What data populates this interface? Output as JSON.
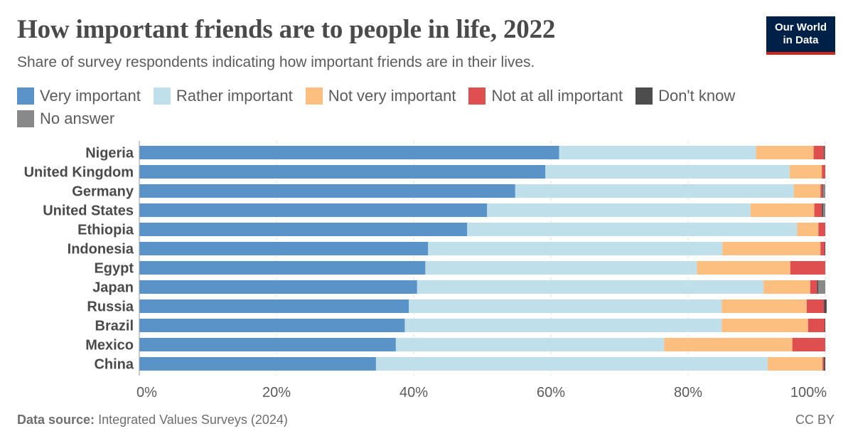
{
  "header": {
    "title": "How important friends are to people in life, 2022",
    "subtitle": "Share of survey respondents indicating how important friends are in their lives."
  },
  "logo": {
    "line1": "Our World",
    "line2": "in Data"
  },
  "footer": {
    "source_label": "Data source:",
    "source_text": "Integrated Values Surveys (2024)",
    "license": "CC BY"
  },
  "chart_data": {
    "type": "bar",
    "orientation": "horizontal",
    "stacked": true,
    "title": "How important friends are to people in life, 2022",
    "subtitle": "Share of survey respondents indicating how important friends are in their lives.",
    "xlim": [
      0,
      100
    ],
    "x_ticks": [
      "0%",
      "20%",
      "40%",
      "60%",
      "80%",
      "100%"
    ],
    "x_tick_values": [
      0,
      20,
      40,
      60,
      80,
      100
    ],
    "grid": "vertical dashed",
    "legend_position": "top-left",
    "categories": [
      "Nigeria",
      "United Kingdom",
      "Germany",
      "United States",
      "Ethiopia",
      "Indonesia",
      "Egypt",
      "Japan",
      "Russia",
      "Brazil",
      "Mexico",
      "China"
    ],
    "series": [
      {
        "name": "Very important",
        "color": "#5a93c8",
        "values": [
          61.2,
          59.2,
          54.8,
          50.7,
          47.8,
          42.1,
          41.7,
          40.5,
          39.3,
          38.7,
          37.4,
          34.5
        ]
      },
      {
        "name": "Rather important",
        "color": "#bfe0eb",
        "values": [
          28.7,
          35.6,
          40.6,
          38.4,
          48.1,
          42.9,
          39.6,
          50.5,
          45.6,
          46.2,
          39.1,
          57.1
        ]
      },
      {
        "name": "Not very important",
        "color": "#fcbf80",
        "values": [
          8.4,
          4.7,
          3.9,
          9.3,
          3.1,
          14.3,
          13.6,
          6.8,
          12.4,
          12.6,
          18.7,
          8.0
        ]
      },
      {
        "name": "Not at all important",
        "color": "#e04f4f",
        "values": [
          1.5,
          0.5,
          0.3,
          1.1,
          1.0,
          0.6,
          5.1,
          1.0,
          2.5,
          2.4,
          4.8,
          0.2
        ]
      },
      {
        "name": "Don't know",
        "color": "#4d4d4d",
        "values": [
          0.1,
          0.0,
          0.1,
          0.2,
          0.0,
          0.1,
          0.0,
          0.2,
          0.4,
          0.1,
          0.0,
          0.2
        ]
      },
      {
        "name": "No answer",
        "color": "#898989",
        "values": [
          0.1,
          0.0,
          0.3,
          0.3,
          0.0,
          0.0,
          0.0,
          1.0,
          0.0,
          0.0,
          0.0,
          0.0
        ]
      }
    ]
  }
}
